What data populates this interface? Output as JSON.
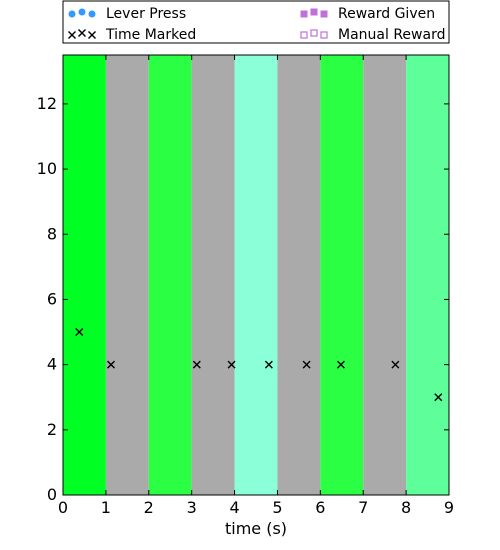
{
  "chart_data": {
    "type": "scatter",
    "xlabel": "time (s)",
    "ylabel": "",
    "xlim": [
      0,
      9
    ],
    "ylim": [
      0,
      13.5
    ],
    "x_ticks": [
      "0",
      "1",
      "2",
      "3",
      "4",
      "5",
      "6",
      "7",
      "8",
      "9"
    ],
    "y_ticks": [
      "0",
      "2",
      "4",
      "6",
      "8",
      "10",
      "12"
    ],
    "legend_placement": "top",
    "background_bands": [
      {
        "x0": 0,
        "x1": 1,
        "color": "#00ff22"
      },
      {
        "x0": 1,
        "x1": 2,
        "color": "#aaaaaa"
      },
      {
        "x0": 2,
        "x1": 3,
        "color": "#2aff44"
      },
      {
        "x0": 3,
        "x1": 4,
        "color": "#aaaaaa"
      },
      {
        "x0": 4,
        "x1": 5,
        "color": "#8affd8"
      },
      {
        "x0": 5,
        "x1": 6,
        "color": "#aaaaaa"
      },
      {
        "x0": 6,
        "x1": 7,
        "color": "#2aff44"
      },
      {
        "x0": 7,
        "x1": 8,
        "color": "#aaaaaa"
      },
      {
        "x0": 8,
        "x1": 9,
        "color": "#5eff9a"
      }
    ],
    "series": [
      {
        "name": "Lever Press",
        "marker": "circle",
        "color": "#3399ff",
        "points": []
      },
      {
        "name": "Time Marked",
        "marker": "x",
        "color": "#000000",
        "points": [
          [
            0.38,
            5
          ],
          [
            1.12,
            4
          ],
          [
            3.12,
            4
          ],
          [
            3.93,
            4
          ],
          [
            4.8,
            4
          ],
          [
            5.68,
            4
          ],
          [
            6.48,
            4
          ],
          [
            7.75,
            4
          ],
          [
            8.75,
            3
          ]
        ]
      },
      {
        "name": "Reward Given",
        "marker": "square-filled",
        "color": "#c070d8",
        "points": []
      },
      {
        "name": "Manual Reward",
        "marker": "square-open",
        "color": "#c070d8",
        "points": []
      }
    ]
  }
}
